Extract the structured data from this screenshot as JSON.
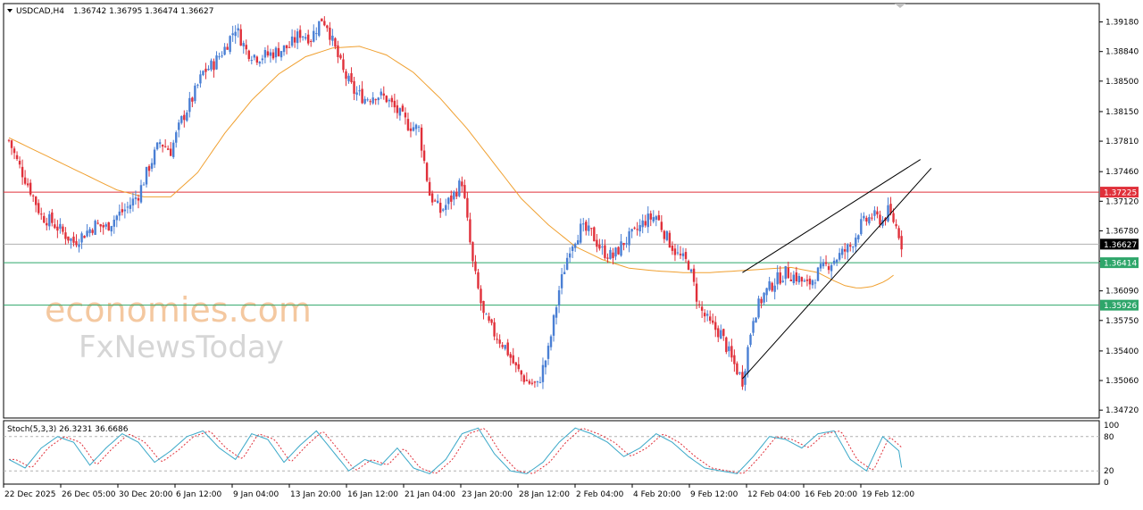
{
  "header": {
    "symbol": "USDCAD,H4",
    "ohlc": "1.36742 1.36795 1.36474 1.36627"
  },
  "indicator": {
    "label": "Stoch(5,3,3) 26.3231 36.6686",
    "levels": [
      "100",
      "80",
      "20",
      "0"
    ]
  },
  "watermark": {
    "line1": "economies.com",
    "line2": "FxNewsToday"
  },
  "price_axis": {
    "ticks": [
      "1.39180",
      "1.38840",
      "1.38500",
      "1.38150",
      "1.37810",
      "1.37460",
      "1.37120",
      "1.36780",
      "1.36430",
      "1.36090",
      "1.35750",
      "1.35400",
      "1.35060",
      "1.34720"
    ],
    "tick_values": [
      1.3918,
      1.3884,
      1.385,
      1.3815,
      1.3781,
      1.3746,
      1.3712,
      1.3678,
      1.3643,
      1.3609,
      1.3575,
      1.354,
      1.3506,
      1.3472
    ]
  },
  "price_badges": [
    {
      "label": "1.37225",
      "value": 1.37225,
      "color": "#e0303a"
    },
    {
      "label": "1.36627",
      "value": 1.36627,
      "color": "#000000"
    },
    {
      "label": "1.36414",
      "value": 1.36414,
      "color": "#2ea66a"
    },
    {
      "label": "1.35926",
      "value": 1.35926,
      "color": "#2ea66a"
    }
  ],
  "time_axis": [
    "22 Dec 2025",
    "26 Dec 05:00",
    "30 Dec 20:00",
    "6 Jan 12:00",
    "9 Jan 04:00",
    "13 Jan 20:00",
    "16 Jan 12:00",
    "21 Jan 04:00",
    "23 Jan 20:00",
    "28 Jan 12:00",
    "2 Feb 04:00",
    "4 Feb 20:00",
    "9 Feb 12:00",
    "12 Feb 04:00",
    "16 Feb 20:00",
    "19 Feb 12:00"
  ],
  "colors": {
    "bull": "#4a7fd4",
    "bear": "#e0303a",
    "ma": "#f0a030",
    "resistance": "#e0303a",
    "support": "#2ea66a",
    "current": "#b0b0b0",
    "stoch_main": "#3aa8c8",
    "stoch_signal": "#e0303a"
  },
  "chart_data": {
    "type": "candlestick",
    "symbol": "USDCAD",
    "timeframe": "H4",
    "ylim": [
      1.3465,
      1.3935
    ],
    "resistance_level": 1.37225,
    "support_levels": [
      1.36414,
      1.35926
    ],
    "current_price": 1.36627,
    "close_path": [
      [
        0,
        1.3782
      ],
      [
        3,
        1.3758
      ],
      [
        8,
        1.3725
      ],
      [
        12,
        1.3695
      ],
      [
        16,
        1.3688
      ],
      [
        20,
        1.3676
      ],
      [
        24,
        1.3665
      ],
      [
        28,
        1.3675
      ],
      [
        32,
        1.3685
      ],
      [
        36,
        1.3682
      ],
      [
        40,
        1.3695
      ],
      [
        44,
        1.3705
      ],
      [
        48,
        1.372
      ],
      [
        52,
        1.3752
      ],
      [
        56,
        1.378
      ],
      [
        60,
        1.377
      ],
      [
        64,
        1.3805
      ],
      [
        68,
        1.383
      ],
      [
        72,
        1.386
      ],
      [
        76,
        1.387
      ],
      [
        80,
        1.3888
      ],
      [
        84,
        1.3912
      ],
      [
        88,
        1.3885
      ],
      [
        92,
        1.3878
      ],
      [
        96,
        1.388
      ],
      [
        100,
        1.3885
      ],
      [
        104,
        1.389
      ],
      [
        108,
        1.3905
      ],
      [
        112,
        1.39
      ],
      [
        116,
        1.3922
      ],
      [
        118,
        1.3915
      ],
      [
        120,
        1.3895
      ],
      [
        124,
        1.386
      ],
      [
        128,
        1.3838
      ],
      [
        132,
        1.383
      ],
      [
        136,
        1.3835
      ],
      [
        140,
        1.383
      ],
      [
        144,
        1.3815
      ],
      [
        148,
        1.38
      ],
      [
        152,
        1.3795
      ],
      [
        156,
        1.372
      ],
      [
        160,
        1.37
      ],
      [
        164,
        1.3715
      ],
      [
        168,
        1.3735
      ],
      [
        172,
        1.364
      ],
      [
        176,
        1.358
      ],
      [
        180,
        1.356
      ],
      [
        184,
        1.3545
      ],
      [
        188,
        1.352
      ],
      [
        192,
        1.3505
      ],
      [
        196,
        1.35
      ],
      [
        200,
        1.354
      ],
      [
        204,
        1.361
      ],
      [
        208,
        1.366
      ],
      [
        212,
        1.368
      ],
      [
        216,
        1.3675
      ],
      [
        220,
        1.3655
      ],
      [
        224,
        1.3648
      ],
      [
        228,
        1.3665
      ],
      [
        232,
        1.3675
      ],
      [
        236,
        1.369
      ],
      [
        240,
        1.3695
      ],
      [
        244,
        1.367
      ],
      [
        248,
        1.365
      ],
      [
        252,
        1.364
      ],
      [
        256,
        1.359
      ],
      [
        260,
        1.357
      ],
      [
        264,
        1.356
      ],
      [
        268,
        1.353
      ],
      [
        272,
        1.3506
      ],
      [
        276,
        1.358
      ],
      [
        280,
        1.3605
      ],
      [
        284,
        1.362
      ],
      [
        288,
        1.363
      ],
      [
        292,
        1.3625
      ],
      [
        296,
        1.3615
      ],
      [
        300,
        1.363
      ],
      [
        304,
        1.364
      ],
      [
        308,
        1.365
      ],
      [
        312,
        1.366
      ],
      [
        316,
        1.3685
      ],
      [
        320,
        1.3695
      ],
      [
        324,
        1.369
      ],
      [
        326,
        1.37
      ],
      [
        328,
        1.369
      ],
      [
        330,
        1.3675
      ],
      [
        331,
        1.36627
      ]
    ],
    "moving_average": [
      [
        0,
        1.3785
      ],
      [
        20,
        1.3755
      ],
      [
        40,
        1.3725
      ],
      [
        50,
        1.3717
      ],
      [
        60,
        1.3717
      ],
      [
        70,
        1.3745
      ],
      [
        80,
        1.379
      ],
      [
        90,
        1.3828
      ],
      [
        100,
        1.3858
      ],
      [
        110,
        1.3878
      ],
      [
        120,
        1.3888
      ],
      [
        130,
        1.389
      ],
      [
        140,
        1.388
      ],
      [
        150,
        1.386
      ],
      [
        160,
        1.383
      ],
      [
        170,
        1.3795
      ],
      [
        180,
        1.3755
      ],
      [
        190,
        1.3715
      ],
      [
        200,
        1.3685
      ],
      [
        210,
        1.366
      ],
      [
        220,
        1.3645
      ],
      [
        230,
        1.3635
      ],
      [
        240,
        1.3632
      ],
      [
        250,
        1.363
      ],
      [
        260,
        1.363
      ],
      [
        270,
        1.3632
      ],
      [
        280,
        1.3634
      ],
      [
        290,
        1.3636
      ],
      [
        300,
        1.363
      ],
      [
        305,
        1.3622
      ],
      [
        310,
        1.3615
      ],
      [
        315,
        1.3612
      ],
      [
        320,
        1.3614
      ],
      [
        325,
        1.362
      ],
      [
        328,
        1.3627
      ]
    ],
    "wedge": {
      "lower": [
        [
          272,
          1.3508
        ],
        [
          342,
          1.375
        ]
      ],
      "upper": [
        [
          272,
          1.363
        ],
        [
          338,
          1.376
        ]
      ]
    },
    "stochastic": {
      "main": [
        [
          0,
          40
        ],
        [
          6,
          25
        ],
        [
          12,
          60
        ],
        [
          18,
          80
        ],
        [
          24,
          70
        ],
        [
          30,
          30
        ],
        [
          36,
          60
        ],
        [
          42,
          85
        ],
        [
          48,
          70
        ],
        [
          54,
          35
        ],
        [
          60,
          55
        ],
        [
          66,
          80
        ],
        [
          72,
          90
        ],
        [
          78,
          60
        ],
        [
          84,
          40
        ],
        [
          90,
          85
        ],
        [
          96,
          75
        ],
        [
          102,
          35
        ],
        [
          108,
          65
        ],
        [
          114,
          90
        ],
        [
          120,
          55
        ],
        [
          126,
          20
        ],
        [
          132,
          40
        ],
        [
          138,
          30
        ],
        [
          144,
          60
        ],
        [
          150,
          25
        ],
        [
          156,
          15
        ],
        [
          162,
          40
        ],
        [
          168,
          85
        ],
        [
          174,
          95
        ],
        [
          180,
          50
        ],
        [
          186,
          20
        ],
        [
          192,
          15
        ],
        [
          198,
          35
        ],
        [
          204,
          70
        ],
        [
          210,
          95
        ],
        [
          216,
          85
        ],
        [
          222,
          70
        ],
        [
          228,
          45
        ],
        [
          234,
          60
        ],
        [
          240,
          85
        ],
        [
          246,
          70
        ],
        [
          252,
          45
        ],
        [
          258,
          25
        ],
        [
          264,
          20
        ],
        [
          270,
          15
        ],
        [
          276,
          45
        ],
        [
          282,
          80
        ],
        [
          288,
          75
        ],
        [
          294,
          60
        ],
        [
          300,
          85
        ],
        [
          306,
          90
        ],
        [
          312,
          40
        ],
        [
          318,
          20
        ],
        [
          324,
          80
        ],
        [
          330,
          55
        ],
        [
          331,
          26
        ]
      ],
      "signal_value": 36.6686,
      "main_value": 26.3231
    }
  }
}
